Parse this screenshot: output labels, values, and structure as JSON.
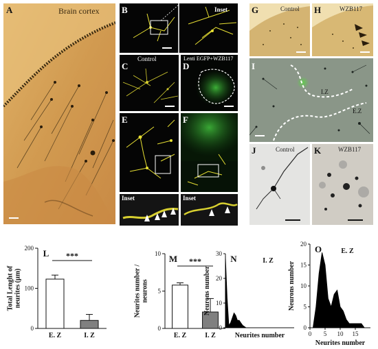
{
  "panels": {
    "A": {
      "letter": "A",
      "caption": "Brain cortex"
    },
    "B": {
      "letter": "B",
      "inset": "Inset"
    },
    "C": {
      "letter": "C",
      "caption": "Control"
    },
    "D": {
      "letter": "D",
      "caption": "Lenti EGFP+WZB117"
    },
    "E": {
      "letter": "E",
      "inset": "Inset"
    },
    "F": {
      "letter": "F",
      "inset": "Inset"
    },
    "G": {
      "letter": "G",
      "caption": "Control"
    },
    "H": {
      "letter": "H",
      "caption": "WZB117"
    },
    "I": {
      "letter": "I",
      "iz": "I.Z",
      "ez": "E.Z"
    },
    "J": {
      "letter": "J",
      "caption": "Control"
    },
    "K": {
      "letter": "K",
      "caption": "WZB117"
    }
  },
  "colors": {
    "fluor_yellow": "#e8e033",
    "gfp_green": "#3fb83a",
    "stain_dark": "#1a140a"
  },
  "chart_data": [
    {
      "panel": "L",
      "type": "bar",
      "ylabel": "Total Lenght of neurites (µm)",
      "categories": [
        "E. Z",
        "I. Z"
      ],
      "values": [
        123,
        20
      ],
      "errors": [
        10,
        15
      ],
      "ylim": [
        0,
        200
      ],
      "yticks": [
        0,
        100,
        200
      ],
      "significance": "***",
      "bar_fill": [
        "#ffffff",
        "#808080"
      ]
    },
    {
      "panel": "M",
      "type": "bar",
      "ylabel": "Neurites number / neurons",
      "categories": [
        "E. Z",
        "I. Z"
      ],
      "values": [
        5.8,
        2.2
      ],
      "errors": [
        0.3,
        1.8
      ],
      "ylim": [
        0,
        10
      ],
      "yticks": [
        0,
        5,
        10
      ],
      "significance": "***",
      "bar_fill": [
        "#ffffff",
        "#808080"
      ]
    },
    {
      "panel": "N",
      "type": "area",
      "title": "I. Z",
      "xlabel": "Neurites number",
      "ylabel": "Neurons number",
      "x": [
        0,
        0.5,
        1,
        1.5,
        2,
        2.5,
        3,
        3.5,
        4,
        4.5,
        5,
        6,
        7
      ],
      "y": [
        29,
        12,
        1,
        2,
        4,
        6,
        5,
        3,
        3,
        2,
        1,
        0,
        0
      ],
      "xlim": [
        0,
        20
      ],
      "ylim": [
        0,
        30
      ],
      "yticks": [
        0,
        10,
        20,
        30
      ]
    },
    {
      "panel": "O",
      "type": "area",
      "title": "E. Z",
      "xlabel": "Neurites number",
      "ylabel": "Neurons number",
      "x": [
        1,
        2,
        3,
        4,
        5,
        6,
        7,
        8,
        9,
        10,
        11,
        12,
        13,
        14,
        15,
        16,
        17,
        18
      ],
      "y": [
        0,
        5,
        13,
        18,
        15,
        7,
        5,
        8,
        9,
        5,
        4,
        2,
        1,
        1,
        1,
        1,
        1,
        0
      ],
      "xlim": [
        0,
        20
      ],
      "ylim": [
        0,
        20
      ],
      "xticks": [
        0,
        5,
        10,
        15
      ],
      "yticks": [
        0,
        5,
        10,
        15,
        20
      ]
    }
  ]
}
